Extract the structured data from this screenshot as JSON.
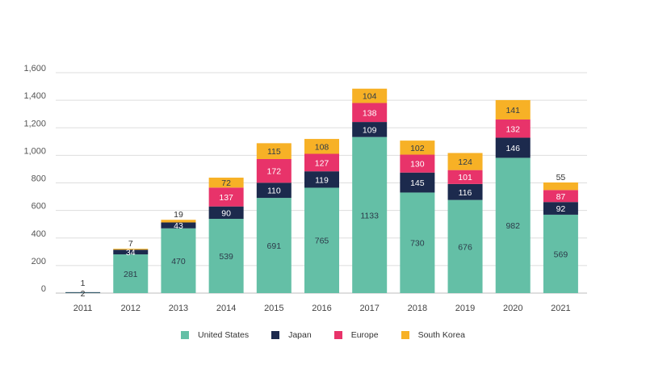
{
  "chart_data": {
    "type": "bar",
    "stacked": true,
    "title": "",
    "xlabel": "",
    "ylabel": "",
    "ylim": [
      0,
      1600
    ],
    "yticks": [
      0,
      200,
      400,
      600,
      800,
      1000,
      1200,
      1400,
      1600
    ],
    "ytick_labels": [
      "0",
      "200",
      "400",
      "600",
      "800",
      "1,000",
      "1,200",
      "1,400",
      "1,600"
    ],
    "grid": true,
    "legend_position": "bottom-center",
    "categories": [
      "2011",
      "2012",
      "2013",
      "2014",
      "2015",
      "2016",
      "2017",
      "2018",
      "2019",
      "2020",
      "2021"
    ],
    "series": [
      {
        "name": "United States",
        "color": "#64BFA6",
        "label_color": "#2d3b4a",
        "values": [
          2,
          281,
          470,
          539,
          691,
          765,
          1133,
          730,
          676,
          982,
          569
        ]
      },
      {
        "name": "Japan",
        "color": "#1C2A4D",
        "label_color": "#ffffff",
        "values": [
          1,
          34,
          43,
          90,
          110,
          119,
          109,
          145,
          116,
          146,
          92
        ]
      },
      {
        "name": "Europe",
        "color": "#E8336A",
        "label_color": "#ffffff",
        "values": [
          0,
          0,
          0,
          137,
          172,
          127,
          138,
          130,
          101,
          132,
          87
        ]
      },
      {
        "name": "South Korea",
        "color": "#F7B126",
        "label_color": "#2d3b4a",
        "values": [
          0,
          7,
          19,
          72,
          115,
          108,
          104,
          102,
          124,
          141,
          55
        ]
      }
    ]
  }
}
